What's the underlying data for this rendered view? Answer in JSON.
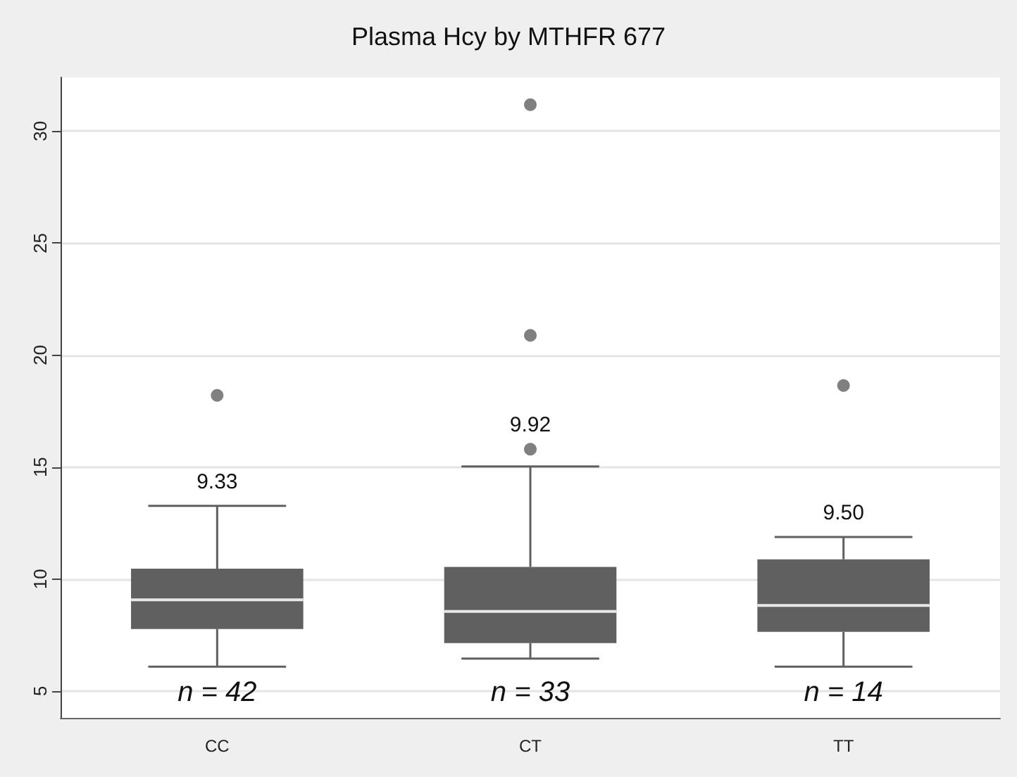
{
  "chart_data": {
    "type": "box",
    "title": "Plasma Hcy by MTHFR 677",
    "categories": [
      "CC",
      "CT",
      "TT"
    ],
    "boxes": [
      {
        "low": 6.09,
        "q1": 7.77,
        "median": 9.07,
        "q3": 10.46,
        "high": 13.27,
        "outliers": [
          18.2
        ]
      },
      {
        "low": 6.45,
        "q1": 7.14,
        "median": 8.55,
        "q3": 10.54,
        "high": 15.03,
        "outliers": [
          15.8,
          20.88,
          31.18
        ]
      },
      {
        "low": 6.09,
        "q1": 7.64,
        "median": 8.82,
        "q3": 10.88,
        "high": 11.88,
        "outliers": [
          18.64
        ]
      }
    ],
    "color": "#606060",
    "ylim": [
      3.8,
      32.4
    ],
    "yticks": [
      5,
      10,
      15,
      20,
      25,
      30
    ],
    "grid": "y",
    "annotations": [
      "9.33",
      "9.92",
      "9.50",
      "n = 42",
      "n = 33",
      "n = 14"
    ]
  }
}
